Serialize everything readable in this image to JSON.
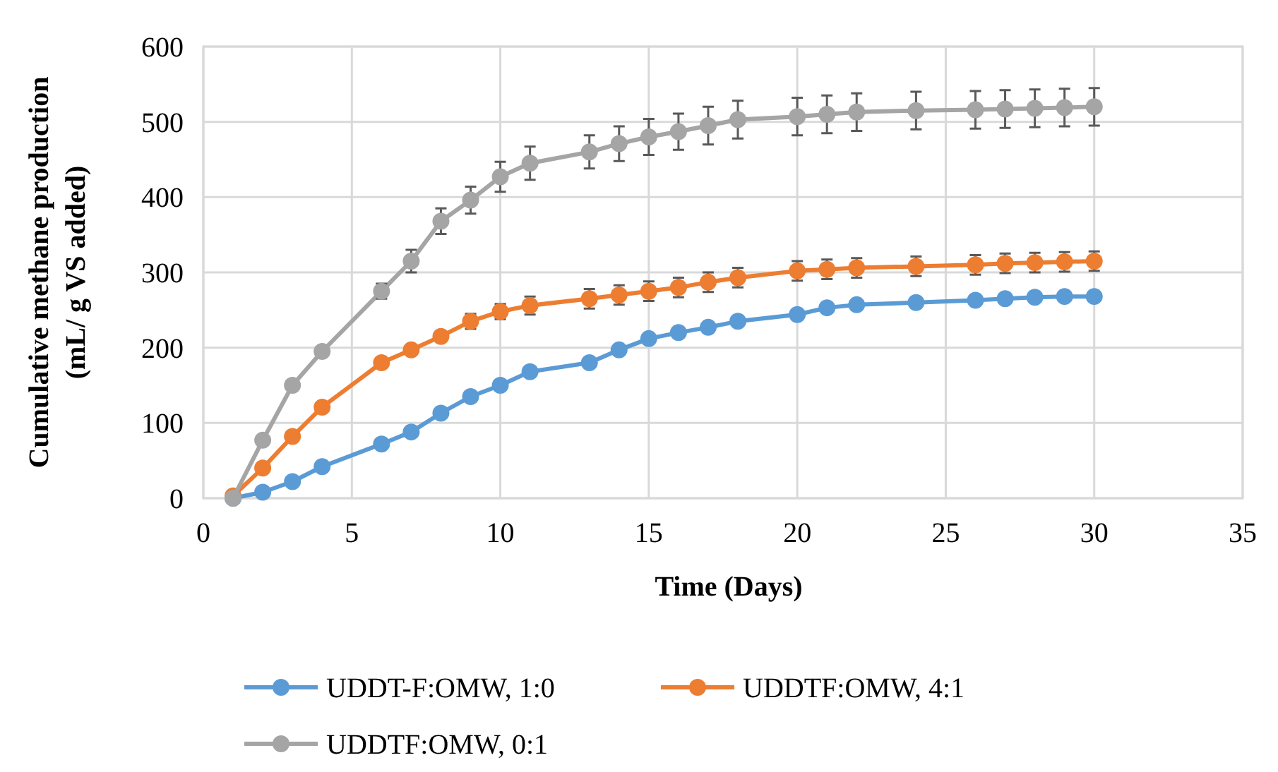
{
  "chart_data": {
    "type": "line",
    "xlabel": "Time (Days)",
    "ylabel": "Cumulative methane production\n(mL/ g VS added)",
    "x": [
      1,
      2,
      3,
      4,
      6,
      7,
      8,
      9,
      10,
      11,
      13,
      14,
      15,
      16,
      17,
      18,
      20,
      21,
      22,
      24,
      26,
      27,
      28,
      29,
      30
    ],
    "series": [
      {
        "name": "UDDT-F:OMW, 1:0",
        "color": "#5b9bd5",
        "values": [
          0,
          8,
          22,
          42,
          72,
          88,
          113,
          135,
          150,
          168,
          180,
          197,
          212,
          220,
          227,
          235,
          244,
          253,
          257,
          260,
          263,
          265,
          267,
          268,
          268
        ]
      },
      {
        "name": "UDDTF:OMW, 4:1",
        "color": "#ed7d31",
        "values": [
          3,
          40,
          82,
          121,
          180,
          197,
          215,
          235,
          248,
          256,
          265,
          270,
          275,
          280,
          287,
          293,
          302,
          304,
          306,
          308,
          310,
          312,
          313,
          314,
          315
        ],
        "errors": [
          null,
          null,
          null,
          null,
          null,
          null,
          null,
          10,
          10,
          12,
          13,
          13,
          13,
          13,
          13,
          13,
          13,
          13,
          13,
          13,
          13,
          13,
          13,
          13,
          13
        ]
      },
      {
        "name": "UDDTF:OMW, 0:1",
        "color": "#a5a5a5",
        "values": [
          0,
          77,
          150,
          195,
          275,
          315,
          368,
          396,
          427,
          445,
          460,
          471,
          480,
          487,
          495,
          503,
          507,
          510,
          513,
          515,
          516,
          517,
          518,
          519,
          520
        ],
        "errors": [
          null,
          null,
          null,
          null,
          10,
          15,
          17,
          18,
          20,
          22,
          22,
          23,
          24,
          24,
          25,
          25,
          25,
          25,
          25,
          25,
          25,
          25,
          25,
          25,
          25
        ]
      }
    ],
    "xlim": [
      0,
      35
    ],
    "xticks": [
      0,
      5,
      10,
      15,
      20,
      25,
      30,
      35
    ],
    "ylim": [
      0,
      600
    ],
    "yticks": [
      0,
      100,
      200,
      300,
      400,
      500,
      600
    ],
    "grid": true,
    "legend": "bottom",
    "marker": "circle",
    "line_style": "solid"
  }
}
